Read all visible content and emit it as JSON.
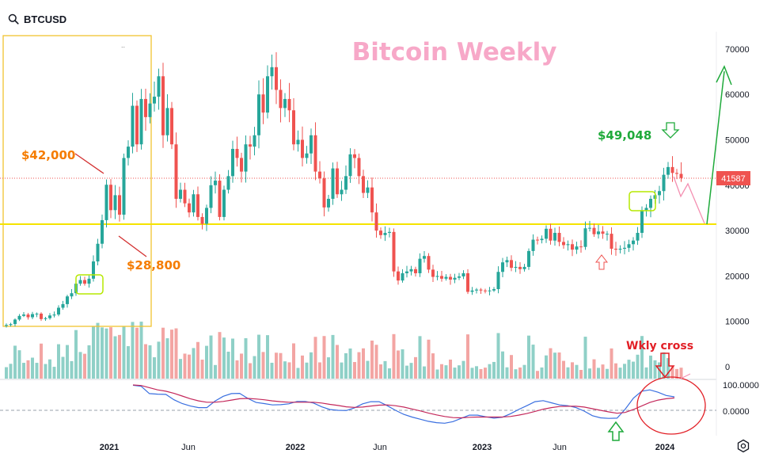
{
  "header": {
    "symbol": "BTCUSD",
    "search_icon": "search-icon"
  },
  "footer": {
    "settings_icon": "gear-icon"
  },
  "colors": {
    "up": "#26a69a",
    "down": "#ef5350",
    "vol_up": "#8fd0c7",
    "vol_down": "#f3a5a3",
    "support_line": "#f5e400",
    "box": "#f2c230",
    "title": "#f7a8c8",
    "orange_note": "#f57c00",
    "green_note": "#1faa3b",
    "red_note": "#e21f26",
    "macd_fast": "#3a6fe0",
    "macd_slow": "#c4285b"
  },
  "chart_data": {
    "type": "candlestick",
    "title": "Bitcoin Weekly",
    "xlabel": "",
    "ylabel": "",
    "x_ticks": [
      "2021",
      "Jun",
      "2022",
      "Jun",
      "2023",
      "Jun",
      "2024"
    ],
    "y_ticks": [
      0,
      10000,
      20000,
      30000,
      40000,
      50000,
      60000,
      70000
    ],
    "y_tick_labels": [
      "0",
      "10000",
      "20000",
      "30000",
      "40000",
      "50000",
      "60000",
      "70000"
    ],
    "ylim": [
      0,
      72000
    ],
    "grid": false,
    "current_price": 41587,
    "current_price_label": "41587",
    "support_level": 31500,
    "weekly_close": [
      9200,
      9400,
      10400,
      11200,
      11500,
      10900,
      11600,
      11700,
      10500,
      10700,
      11300,
      11500,
      13000,
      13800,
      15500,
      16200,
      18300,
      19100,
      18300,
      19400,
      23200,
      27100,
      32300,
      40100,
      34500,
      37800,
      33500,
      46000,
      48500,
      57500,
      49000,
      59000,
      55000,
      58000,
      59500,
      64000,
      51000,
      57000,
      49000,
      37000,
      39000,
      36000,
      34000,
      38000,
      33000,
      31500,
      35000,
      40000,
      41000,
      33000,
      39000,
      42000,
      48000,
      46000,
      43000,
      49000,
      48500,
      51000,
      60000,
      56000,
      64000,
      66000,
      61000,
      57000,
      59000,
      56500,
      49000,
      50000,
      46000,
      47000,
      51000,
      43000,
      41500,
      35100,
      37000,
      43700,
      38000,
      39000,
      42000,
      46800,
      46000,
      42000,
      38300,
      39500,
      34000,
      30000,
      29000,
      29500,
      29700,
      21000,
      19000,
      20600,
      21000,
      21500,
      20600,
      23800,
      24400,
      21400,
      19800,
      20000,
      19400,
      19800,
      19200,
      19600,
      19900,
      20600,
      16500,
      16800,
      17000,
      16800,
      16700,
      16800,
      17100,
      20900,
      23000,
      23500,
      21800,
      22000,
      21500,
      22000,
      25500,
      28000,
      27900,
      28200,
      30400,
      27800,
      29500,
      27500,
      26800,
      27000,
      25800,
      26500,
      26400,
      30500,
      30600,
      29200,
      29800,
      29300,
      29300,
      26000,
      25800,
      26000,
      26200,
      27000,
      27800,
      29500,
      34500,
      35000,
      37000,
      37800,
      38700,
      42300,
      44000,
      42700,
      42500,
      41587
    ],
    "macd_fast": [
      0.93,
      0.89,
      0.62,
      0.6,
      0.59,
      0.39,
      0.25,
      0.16,
      0.1,
      0.1,
      0.34,
      0.52,
      0.62,
      0.63,
      0.44,
      0.29,
      0.25,
      0.2,
      0.21,
      0.24,
      0.33,
      0.33,
      0.27,
      0.13,
      0.03,
      0.0,
      -0.01,
      0.09,
      0.24,
      0.32,
      0.32,
      0.17,
      0.0,
      -0.15,
      -0.25,
      -0.33,
      -0.41,
      -0.46,
      -0.48,
      -0.42,
      -0.3,
      -0.18,
      -0.18,
      -0.24,
      -0.29,
      -0.26,
      -0.13,
      0.03,
      0.17,
      0.32,
      0.36,
      0.28,
      0.2,
      0.17,
      0.1,
      -0.03,
      -0.2,
      -0.28,
      -0.3,
      -0.29,
      0.04,
      0.45,
      0.71,
      0.76,
      0.67,
      0.55,
      0.5
    ],
    "macd_slow": [
      0.94,
      0.92,
      0.84,
      0.76,
      0.71,
      0.63,
      0.53,
      0.43,
      0.35,
      0.3,
      0.3,
      0.33,
      0.38,
      0.43,
      0.44,
      0.42,
      0.39,
      0.35,
      0.32,
      0.3,
      0.3,
      0.3,
      0.3,
      0.27,
      0.22,
      0.18,
      0.13,
      0.11,
      0.12,
      0.16,
      0.19,
      0.2,
      0.17,
      0.12,
      0.05,
      -0.02,
      -0.1,
      -0.17,
      -0.23,
      -0.27,
      -0.28,
      -0.26,
      -0.25,
      -0.25,
      -0.25,
      -0.25,
      -0.23,
      -0.18,
      -0.12,
      -0.04,
      0.04,
      0.1,
      0.14,
      0.15,
      0.15,
      0.12,
      0.06,
      0.0,
      -0.06,
      -0.11,
      -0.08,
      0.03,
      0.16,
      0.29,
      0.38,
      0.43,
      0.46
    ],
    "macd_tick_labels": [
      "100.0000",
      "0.0000"
    ],
    "annotations": {
      "price_42000": "$42,000",
      "price_28800": "$28,800",
      "price_49048": "$49,048",
      "wkly_cross": "Wkly cross",
      "title_tag": "Bitcoin Weekly"
    }
  }
}
